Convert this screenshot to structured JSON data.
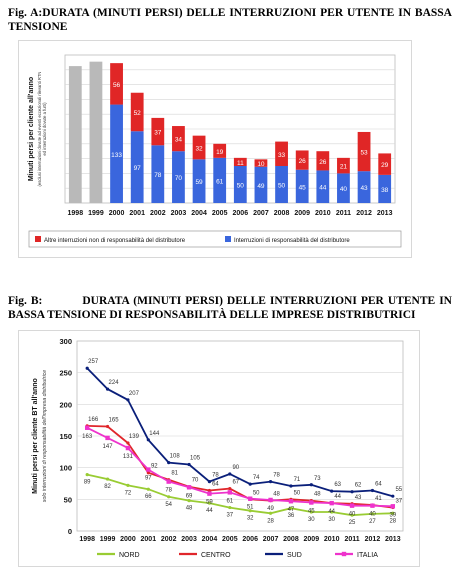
{
  "figA": {
    "title": "Fig. A:DURATA (MINUTI PERSI) DELLE INTERRUZIONI PER UTENTE IN BASSA TENSIONE"
  },
  "figB": {
    "title_lead": "Fig. B:",
    "title_rest": "DURATA (MINUTI PERSI) DELLE INTERRUZIONI PER UTENTE IN BASSA TENSIONE DI RESPONSABILITÀ DELLE IMPRESE DISTRIBUTRICI"
  },
  "chart_data": [
    {
      "type": "bar",
      "stacked": true,
      "title": "",
      "ylabel": "Minuti persi per cliente all'anno",
      "ylabel_sub1": "(esclusi interruzioni dovute ad eventi eccezionali rilevanti RTN",
      "ylabel_sub2": "ed interruzioni dovute a furti)",
      "categories": [
        "1998",
        "1999",
        "2000",
        "2001",
        "2002",
        "2003",
        "2004",
        "2005",
        "2006",
        "2007",
        "2008",
        "2009",
        "2010",
        "2011",
        "2012",
        "2013"
      ],
      "ylim": [
        0,
        200
      ],
      "grid": true,
      "legend_position": "bottom",
      "totals_gray": [
        185,
        191
      ],
      "series": [
        {
          "name": "Interruzioni di responsabilità del distributore",
          "color": "#3a66dd",
          "values": [
            null,
            null,
            133,
            97,
            78,
            70,
            59,
            61,
            50,
            49,
            50,
            45,
            44,
            40,
            43,
            38
          ],
          "labels": [
            "",
            "",
            "133",
            "97",
            "78",
            "70",
            "59",
            "61",
            "50",
            "49",
            "50",
            "45",
            "44",
            "40",
            "43",
            "38"
          ]
        },
        {
          "name": "Altre interruzioni non di responsabilità del distributore",
          "color": "#e02626",
          "values": [
            null,
            null,
            56,
            52,
            37,
            34,
            32,
            19,
            11,
            10,
            33,
            26,
            26,
            21,
            53,
            29
          ],
          "labels": [
            "",
            "",
            "56",
            "52",
            "37",
            "34",
            "32",
            "19",
            "11",
            "10",
            "33",
            "26",
            "26",
            "21",
            "53",
            "29"
          ]
        }
      ]
    },
    {
      "type": "line",
      "title": "",
      "ylabel": "Minuti persi per cliente BT all'anno",
      "ylabel_sub": "solo interruzioni di responsabilità dell'impresa distributrice",
      "x": [
        "1998",
        "1999",
        "2000",
        "2001",
        "2002",
        "2003",
        "2004",
        "2005",
        "2006",
        "2007",
        "2008",
        "2009",
        "2010",
        "2011",
        "2012",
        "2013"
      ],
      "ylim": [
        0,
        300
      ],
      "yticks": [
        0,
        50,
        100,
        150,
        200,
        250,
        300
      ],
      "grid": true,
      "legend_position": "bottom",
      "series": [
        {
          "name": "NORD",
          "color": "#99cc33",
          "values": [
            89,
            82,
            72,
            66,
            54,
            48,
            44,
            37,
            32,
            28,
            36,
            30,
            30,
            25,
            27,
            28
          ]
        },
        {
          "name": "CENTRO",
          "color": "#e0262b",
          "values": [
            166,
            165,
            139,
            92,
            81,
            70,
            64,
            67,
            50,
            48,
            50,
            48,
            44,
            43,
            41,
            37
          ]
        },
        {
          "name": "SUD",
          "color": "#0a1f7a",
          "values": [
            257,
            224,
            207,
            144,
            108,
            105,
            78,
            90,
            74,
            78,
            71,
            73,
            63,
            62,
            64,
            55
          ]
        },
        {
          "name": "ITALIA",
          "color": "#ee33cc",
          "values": [
            163,
            147,
            131,
            97,
            78,
            69,
            59,
            61,
            51,
            49,
            47,
            45,
            44,
            40,
            40,
            39
          ]
        }
      ]
    }
  ]
}
